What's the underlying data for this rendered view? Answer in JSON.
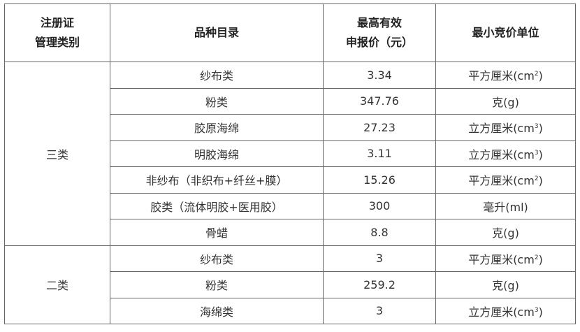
{
  "headers": {
    "category_line1": "注册证",
    "category_line2": "管理类别",
    "catalog": "品种目录",
    "price_line1": "最高有效",
    "price_line2": "申报价（元）",
    "unit": "最小竞价单位"
  },
  "groups": [
    {
      "category": "三类",
      "rows": [
        {
          "name": "纱布类",
          "price": "3.34",
          "unit": {
            "base": "平方厘米(cm",
            "sup": "2",
            "end": ")"
          }
        },
        {
          "name": "粉类",
          "price": "347.76",
          "unit": {
            "base": "克(g)",
            "sup": "",
            "end": ""
          }
        },
        {
          "name": "胶原海绵",
          "price": "27.23",
          "unit": {
            "base": "立方厘米(cm",
            "sup": "3",
            "end": ")"
          }
        },
        {
          "name": "明胶海绵",
          "price": "3.11",
          "unit": {
            "base": "立方厘米(cm",
            "sup": "3",
            "end": ")"
          }
        },
        {
          "name": "非纱布（非织布+纤丝+膜）",
          "price": "15.26",
          "unit": {
            "base": "平方厘米(cm",
            "sup": "2",
            "end": ")"
          }
        },
        {
          "name": "胶类（流体明胶+医用胶）",
          "price": "300",
          "unit": {
            "base": "毫升(ml)",
            "sup": "",
            "end": ""
          }
        },
        {
          "name": "骨蜡",
          "price": "8.8",
          "unit": {
            "base": "克(g)",
            "sup": "",
            "end": ""
          }
        }
      ]
    },
    {
      "category": "二类",
      "rows": [
        {
          "name": "纱布类",
          "price": "3",
          "unit": {
            "base": "平方厘米(cm",
            "sup": "2",
            "end": ")"
          }
        },
        {
          "name": "粉类",
          "price": "259.2",
          "unit": {
            "base": "克(g)",
            "sup": "",
            "end": ""
          }
        },
        {
          "name": "海绵类",
          "price": "3",
          "unit": {
            "base": "立方厘米(cm",
            "sup": "3",
            "end": ")"
          }
        }
      ]
    }
  ]
}
